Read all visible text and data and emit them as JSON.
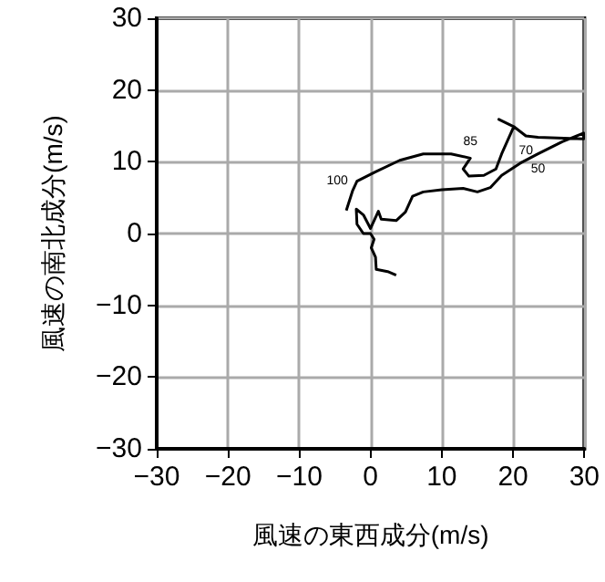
{
  "chart_data": {
    "type": "line",
    "xlabel": "風速の東西成分(m/s)",
    "ylabel": "風速の南北成分(m/s)",
    "xlim": [
      -30,
      30
    ],
    "ylim": [
      -30,
      30
    ],
    "xticks": [
      -30,
      -20,
      -10,
      0,
      10,
      20,
      30
    ],
    "yticks": [
      -30,
      -20,
      -10,
      0,
      10,
      20,
      30
    ],
    "grid": true,
    "marker": "none",
    "line_style": "solid",
    "series": [
      {
        "color": "#000000",
        "x": [
          3.6,
          2.4,
          0.8,
          0.7,
          0.1,
          0.5,
          0,
          -1,
          -1.9,
          -2,
          -1,
          0,
          1.1,
          1.5,
          3.6,
          4.9,
          5.9,
          7.4,
          10,
          13,
          15,
          16.8,
          18.4,
          21,
          23.5,
          26.9,
          29.9,
          29.9,
          23.5,
          21.8,
          20.1,
          18,
          20.1,
          18.4,
          17.6,
          15.9,
          13.8,
          13,
          14,
          11.3,
          10,
          7.4,
          4.1,
          0.7,
          -1.9,
          -2.5,
          -3.4
        ],
        "values": [
          -5.8,
          -5.3,
          -5,
          -3.3,
          -2,
          -0.8,
          0,
          0,
          1.3,
          3.4,
          2.6,
          0.7,
          3.1,
          2,
          1.8,
          3,
          5.2,
          5.8,
          6.1,
          6.3,
          5.8,
          6.4,
          8.1,
          9.8,
          11.1,
          12.8,
          14,
          13.2,
          13.4,
          13.6,
          14.9,
          15.9,
          14.9,
          11.1,
          9,
          8.1,
          8,
          9,
          10.5,
          11.1,
          11.1,
          11.1,
          10.2,
          8.6,
          7.3,
          6,
          3.2
        ]
      }
    ],
    "annotations": [
      {
        "text": "100",
        "x": -1.9,
        "y": 7.3
      },
      {
        "text": "85",
        "x": 14,
        "y": 10.5
      },
      {
        "text": "70",
        "x": 21.8,
        "y": 13.6
      },
      {
        "text": "50",
        "x": 23.5,
        "y": 11.1
      }
    ]
  }
}
